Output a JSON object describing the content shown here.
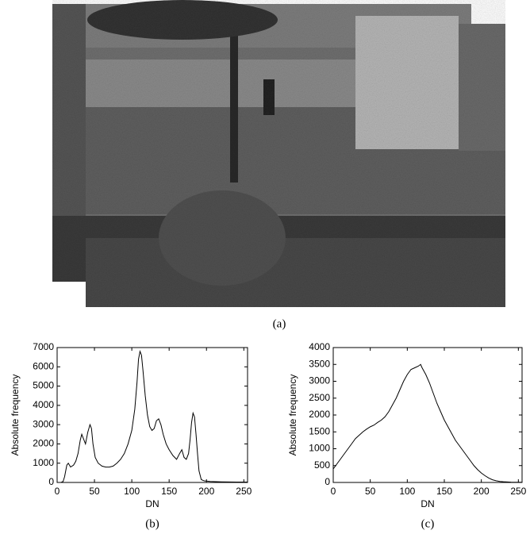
{
  "figure_a": {
    "caption": "(a)"
  },
  "chart_data": [
    {
      "type": "line",
      "caption": "(b)",
      "xlabel": "DN",
      "ylabel": "Absolute frequency",
      "color": "#000000",
      "xlim": [
        0,
        255
      ],
      "xticks": [
        0,
        50,
        100,
        150,
        200,
        250
      ],
      "ylim": [
        0,
        7000
      ],
      "yticks": [
        0,
        1000,
        2000,
        3000,
        4000,
        5000,
        6000,
        7000
      ],
      "x": [
        0,
        5,
        8,
        10,
        13,
        15,
        18,
        22,
        25,
        28,
        31,
        33,
        35,
        38,
        41,
        44,
        46,
        48,
        51,
        55,
        60,
        65,
        70,
        75,
        80,
        85,
        90,
        95,
        100,
        104,
        107,
        109,
        111,
        113,
        115,
        118,
        121,
        124,
        127,
        130,
        133,
        136,
        139,
        142,
        146,
        150,
        155,
        160,
        164,
        167,
        170,
        173,
        176,
        178,
        180,
        182,
        184,
        186,
        188,
        190,
        193,
        197,
        205,
        220,
        240,
        255
      ],
      "values": [
        0,
        0,
        50,
        300,
        900,
        1000,
        800,
        900,
        1100,
        1500,
        2200,
        2500,
        2300,
        2000,
        2600,
        3000,
        2800,
        2000,
        1300,
        1000,
        850,
        800,
        800,
        850,
        1000,
        1200,
        1500,
        2000,
        2700,
        3800,
        5200,
        6400,
        6800,
        6600,
        5800,
        4500,
        3500,
        2900,
        2700,
        2800,
        3200,
        3300,
        3000,
        2500,
        2000,
        1700,
        1400,
        1200,
        1500,
        1700,
        1300,
        1200,
        1500,
        2200,
        3100,
        3600,
        3400,
        2500,
        1500,
        600,
        150,
        80,
        50,
        30,
        20,
        20
      ]
    },
    {
      "type": "line",
      "caption": "(c)",
      "xlabel": "DN",
      "ylabel": "Absolute frequency",
      "color": "#000000",
      "xlim": [
        0,
        255
      ],
      "xticks": [
        0,
        50,
        100,
        150,
        200,
        250
      ],
      "ylim": [
        0,
        4000
      ],
      "yticks": [
        0,
        500,
        1000,
        1500,
        2000,
        2500,
        3000,
        3500,
        4000
      ],
      "x": [
        0,
        5,
        10,
        15,
        20,
        25,
        30,
        35,
        40,
        45,
        50,
        55,
        60,
        65,
        70,
        75,
        80,
        85,
        90,
        95,
        100,
        105,
        110,
        115,
        118,
        120,
        125,
        130,
        135,
        140,
        145,
        150,
        155,
        160,
        165,
        170,
        175,
        180,
        185,
        190,
        195,
        200,
        205,
        210,
        215,
        220,
        225,
        230,
        240,
        250,
        255
      ],
      "values": [
        400,
        550,
        700,
        850,
        1000,
        1150,
        1300,
        1400,
        1500,
        1580,
        1650,
        1700,
        1780,
        1850,
        1950,
        2100,
        2300,
        2500,
        2750,
        3000,
        3200,
        3350,
        3400,
        3450,
        3500,
        3400,
        3200,
        2950,
        2650,
        2350,
        2100,
        1850,
        1650,
        1450,
        1250,
        1100,
        950,
        800,
        650,
        500,
        380,
        280,
        200,
        130,
        80,
        50,
        30,
        20,
        10,
        5,
        5
      ]
    }
  ]
}
